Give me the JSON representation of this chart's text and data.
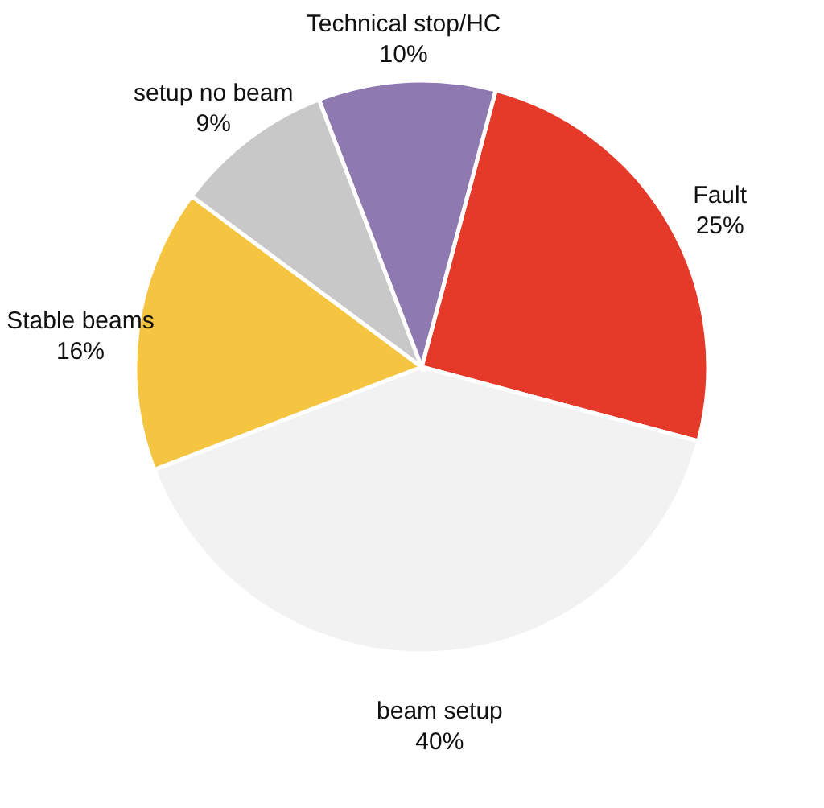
{
  "chart_data": {
    "type": "pie",
    "categories": [
      "Fault",
      "beam setup",
      "Stable beams",
      "setup no beam",
      "Technical stop/HC"
    ],
    "values": [
      25,
      40,
      16,
      9,
      10
    ],
    "value_labels": [
      "25%",
      "40%",
      "16%",
      "9%",
      "10%"
    ],
    "colors": [
      "#e5392a",
      "#f2f2f2",
      "#f5c542",
      "#c8c8c8",
      "#8e79b0"
    ]
  }
}
